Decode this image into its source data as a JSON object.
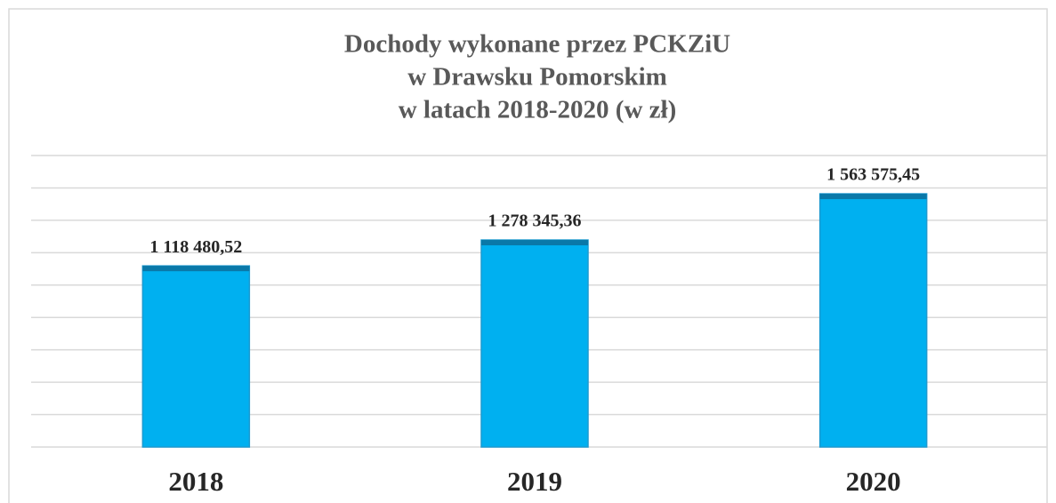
{
  "chart_data": {
    "type": "bar",
    "title": [
      "Dochody wykonane przez PCKZiU",
      "w Drawsku Pomorskim",
      "w latach 2018-2020 (w zł)"
    ],
    "categories": [
      "2018",
      "2019",
      "2020"
    ],
    "values": [
      1118480.52,
      1278345.36,
      1563575.45
    ],
    "value_labels": [
      "1 118 480,52",
      "1 278 345,36",
      "1 563 575,45"
    ],
    "color": "#00b0f0",
    "ylim": [
      0,
      1800000
    ],
    "yticks": [
      0,
      200000,
      400000,
      600000,
      800000,
      1000000,
      1200000,
      1400000,
      1600000,
      1800000
    ],
    "grid": true
  }
}
